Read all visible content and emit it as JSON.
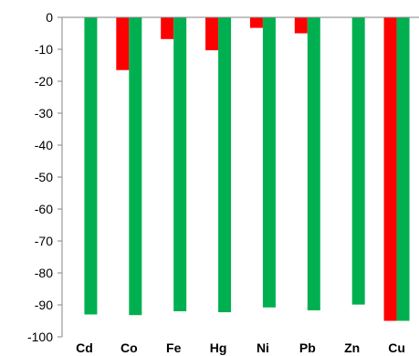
{
  "chart_data": {
    "type": "bar",
    "categories": [
      "Cd",
      "Co",
      "Fe",
      "Hg",
      "Ni",
      "Pb",
      "Zn",
      "Cu"
    ],
    "series": [
      {
        "color": "#ff0000",
        "values": [
          0,
          -16.5,
          -6.8,
          -10.3,
          -3.3,
          -5.0,
          0,
          -95.0
        ]
      },
      {
        "color": "#00b050",
        "values": [
          -93.0,
          -93.2,
          -92.0,
          -92.3,
          -90.8,
          -91.7,
          -89.9,
          -95.0
        ]
      }
    ],
    "title": "",
    "xlabel": "",
    "ylabel": "",
    "ylim": [
      -100,
      0
    ],
    "yticks": [
      "0",
      "-10",
      "-20",
      "-30",
      "-40",
      "-50",
      "-60",
      "-70",
      "-80",
      "-90",
      "-100"
    ],
    "ytick_values": [
      0,
      -10,
      -20,
      -30,
      -40,
      -50,
      -60,
      -70,
      -80,
      -90,
      -100
    ],
    "grid": false,
    "legend": "none",
    "xaxis_position": "top"
  }
}
